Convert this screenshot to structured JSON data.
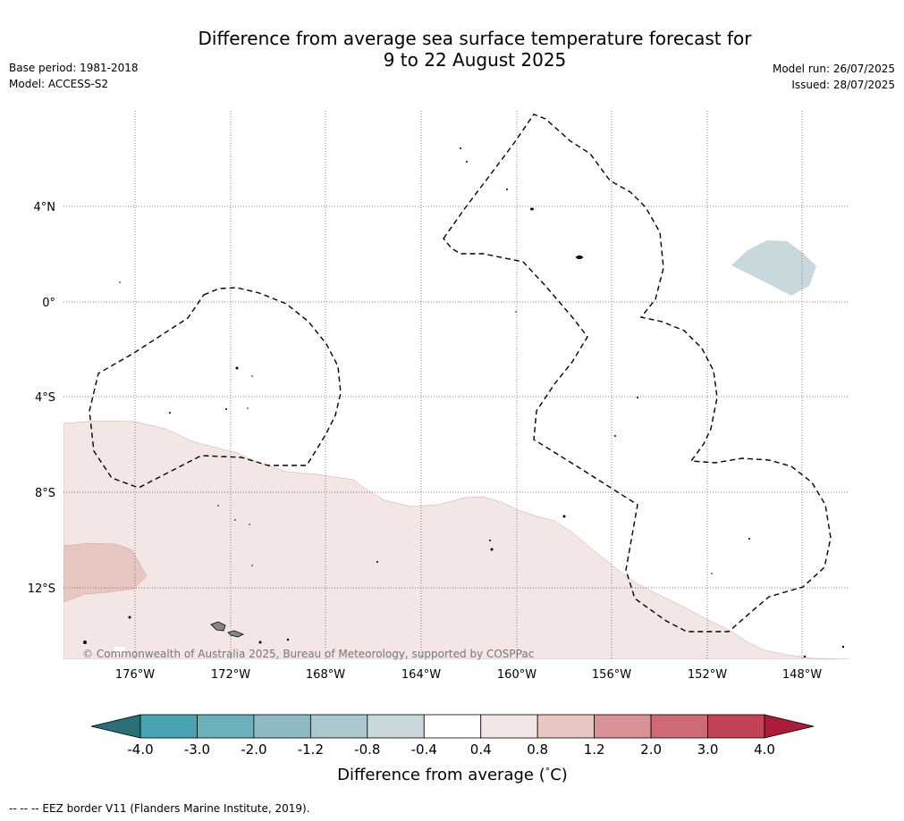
{
  "title_line1": "Difference from average sea surface temperature forecast for",
  "title_line2": "9 to 22 August 2025",
  "base_period": "Base period: 1981-2018",
  "model": "Model: ACCESS-S2",
  "model_run": "Model run: 26/07/2025",
  "issued": "Issued: 28/07/2025",
  "copyright": "© Commonwealth of Australia 2025, Bureau of Meteorology, supported by COSPPac",
  "lat_labels": [
    "4°N",
    "0°",
    "4°S",
    "8°S",
    "12°S"
  ],
  "lon_labels": [
    "176°W",
    "172°W",
    "168°W",
    "164°W",
    "160°W",
    "156°W",
    "152°W",
    "148°W"
  ],
  "colorbar": {
    "title": "Difference from average (",
    "title_unit": "°",
    "title_end": "C)",
    "labels": [
      "-4.0",
      "-3.0",
      "-2.0",
      "-1.2",
      "-0.8",
      "-0.4",
      "0.4",
      "0.8",
      "1.2",
      "2.0",
      "3.0",
      "4.0"
    ],
    "colors": [
      "#2d6f79",
      "#4aa3b2",
      "#6bb0bd",
      "#8dbac5",
      "#a9c7cd",
      "#c8d8dc",
      "#ffffff",
      "#f4e6e5",
      "#e8c6c2",
      "#d99298",
      "#cd6a76",
      "#c04455",
      "#ab1b3a"
    ]
  },
  "footnote": "--  --  -- EEZ border V11 (Flanders Marine Institute, 2019)."
}
